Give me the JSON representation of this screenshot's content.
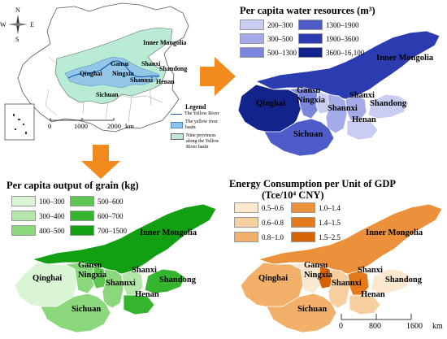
{
  "overview": {
    "compass": {
      "n": "N",
      "s": "S",
      "e": "E",
      "w": "W"
    },
    "labels": {
      "inner_mongolia": "Inner Mongolia",
      "gansu": "Gansu",
      "shanxi": "Shanxi",
      "qinghai": "Qinghai",
      "ningxia": "Ningxia",
      "shandong": "Shandong",
      "shannxi": "Shannxi",
      "henan": "Henan",
      "sichuan": "Sichuan"
    },
    "legend": {
      "title": "Legend",
      "items": [
        "The Yellow River",
        "The yellow river basin",
        "Nine provinces along the Yellow River basin"
      ]
    },
    "scale": {
      "ticks": [
        "0",
        "1000",
        "2000"
      ],
      "unit": "km"
    }
  },
  "water": {
    "title": "Per capita water resources (m³)",
    "legend": [
      {
        "label": "200–300",
        "color": "#c9cdf2"
      },
      {
        "label": "300–500",
        "color": "#a5abe8"
      },
      {
        "label": "500–1300",
        "color": "#7c85dc"
      },
      {
        "label": "1300–1900",
        "color": "#4e5cc9"
      },
      {
        "label": "1900–3600",
        "color": "#2b3bb0"
      },
      {
        "label": "3600–16,100",
        "color": "#13238c"
      }
    ]
  },
  "grain": {
    "title": "Per capita output of grain (kg)",
    "legend": [
      {
        "label": "100–300",
        "color": "#d9f5d3"
      },
      {
        "label": "300–400",
        "color": "#b4e6a9"
      },
      {
        "label": "400–500",
        "color": "#8ad77c"
      },
      {
        "label": "500–600",
        "color": "#5cc650"
      },
      {
        "label": "600–700",
        "color": "#34b52d"
      },
      {
        "label": "700–1500",
        "color": "#12a012"
      }
    ]
  },
  "energy": {
    "title_line1": "Energy Consumption per Unit of GDP",
    "title_line2": "(Tce/10⁴ CNY)",
    "legend": [
      {
        "label": "0.5–0.6",
        "color": "#fbe8cf"
      },
      {
        "label": "0.6–0.8",
        "color": "#f7cf9e"
      },
      {
        "label": "0.8–1.0",
        "color": "#f2b06a"
      },
      {
        "label": "1.0–1.4",
        "color": "#ec913b"
      },
      {
        "label": "1.4–1.5",
        "color": "#e57a1d"
      },
      {
        "label": "1.5–2.5",
        "color": "#d86307"
      }
    ],
    "scale": {
      "ticks": [
        "0",
        "800",
        "1600"
      ],
      "unit": "km"
    }
  },
  "provinces": {
    "inner_mongolia": "Inner Mongolia",
    "gansu": "Gansu",
    "ningxia": "Ningxia",
    "shanxi": "Shanxi",
    "shandong": "Shandong",
    "qinghai": "Qinghai",
    "shannxi": "Shannxi",
    "henan": "Henan",
    "sichuan": "Sichuan"
  }
}
